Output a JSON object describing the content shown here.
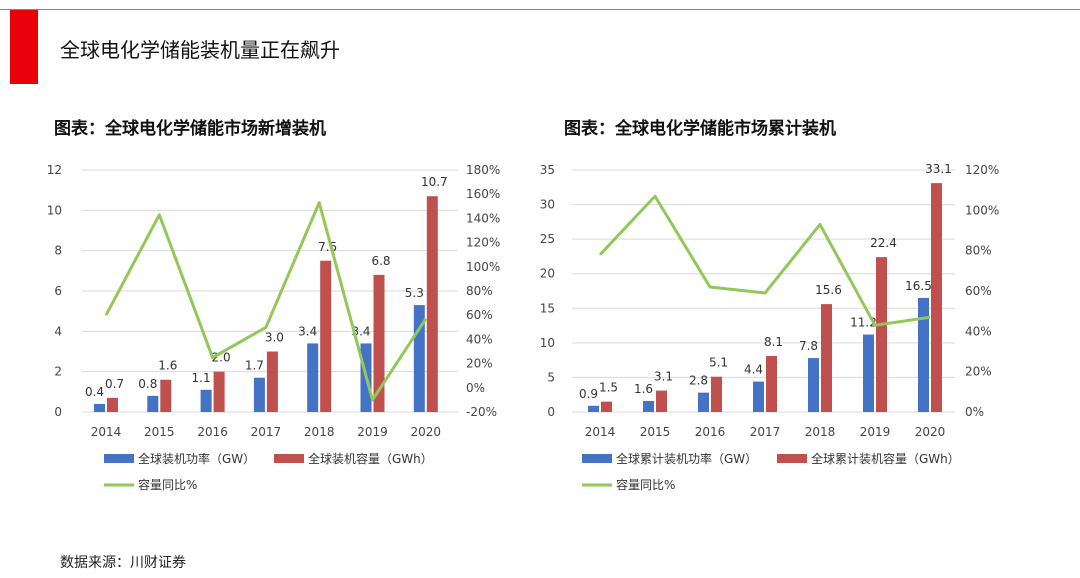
{
  "header": {
    "title": "全球电化学储能装机量正在飙升"
  },
  "footer": {
    "source": "数据来源：川财证券"
  },
  "colors": {
    "bar1": "#4472c4",
    "bar2": "#c0504d",
    "line": "#92c85a",
    "accent": "#e8000b"
  },
  "chart_data": [
    {
      "type": "bar",
      "title": "图表：全球电化学储能市场新增装机",
      "categories": [
        "2014",
        "2015",
        "2016",
        "2017",
        "2018",
        "2019",
        "2020"
      ],
      "series": [
        {
          "name": "全球装机功率（GW）",
          "values": [
            0.4,
            0.8,
            1.1,
            1.7,
            3.4,
            3.4,
            5.3
          ],
          "labels": [
            "0.4",
            "0.8",
            "1.1",
            "1.7",
            "3.4",
            "3.4",
            "5.3"
          ]
        },
        {
          "name": "全球装机容量（GWh）",
          "values": [
            0.7,
            1.6,
            2.0,
            3.0,
            7.5,
            6.8,
            10.7
          ],
          "labels": [
            "0.7",
            "1.6",
            "2.0",
            "3.0",
            "7.5",
            "6.8",
            "10.7"
          ]
        }
      ],
      "line": {
        "name": "容量同比%",
        "values": [
          60,
          143,
          25,
          50,
          153,
          -10,
          57
        ]
      },
      "ylim": [
        0,
        12
      ],
      "yticks": [
        "0",
        "2",
        "4",
        "6",
        "8",
        "10",
        "12"
      ],
      "y2lim": [
        -20,
        180
      ],
      "y2ticks": [
        "-20%",
        "0%",
        "20%",
        "40%",
        "60%",
        "80%",
        "100%",
        "120%",
        "140%",
        "160%",
        "180%"
      ],
      "grid": true,
      "legend": "bottom"
    },
    {
      "type": "bar",
      "title": "图表：全球电化学储能市场累计装机",
      "categories": [
        "2014",
        "2015",
        "2016",
        "2017",
        "2018",
        "2019",
        "2020"
      ],
      "series": [
        {
          "name": "全球累计装机功率（GW）",
          "values": [
            0.9,
            1.6,
            2.8,
            4.4,
            7.8,
            11.2,
            16.5
          ],
          "labels": [
            "0.9",
            "1.6",
            "2.8",
            "4.4",
            "7.8",
            "11.2",
            "16.5"
          ]
        },
        {
          "name": "全球累计装机容量（GWh）",
          "values": [
            1.5,
            3.1,
            5.1,
            8.1,
            15.6,
            22.4,
            33.1
          ],
          "labels": [
            "1.5",
            "3.1",
            "5.1",
            "8.1",
            "15.6",
            "22.4",
            "33.1"
          ]
        }
      ],
      "line": {
        "name": "容量同比%",
        "values": [
          78,
          107,
          62,
          59,
          93,
          43,
          47
        ]
      },
      "ylim": [
        0,
        35
      ],
      "yticks": [
        "0",
        "5",
        "10",
        "15",
        "20",
        "25",
        "30",
        "35"
      ],
      "y2lim": [
        0,
        120
      ],
      "y2ticks": [
        "0%",
        "20%",
        "40%",
        "60%",
        "80%",
        "100%",
        "120%"
      ],
      "grid": true,
      "legend": "bottom"
    }
  ]
}
